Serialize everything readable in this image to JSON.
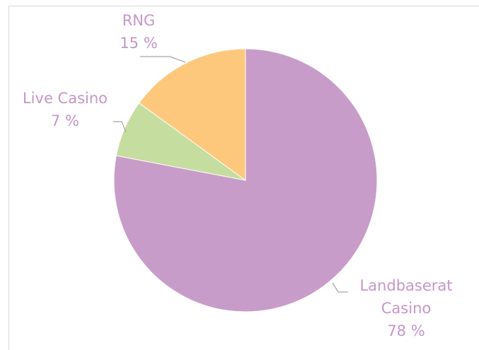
{
  "chart_data": {
    "type": "pie",
    "categories": [
      "Landbaserat Casino",
      "Live Casino",
      "RNG"
    ],
    "values": [
      78,
      7,
      15
    ],
    "value_labels": [
      "78 %",
      "7 %",
      "15 %"
    ],
    "colors": [
      "#c89cc8",
      "#c5dd9f",
      "#fdc87c"
    ]
  }
}
